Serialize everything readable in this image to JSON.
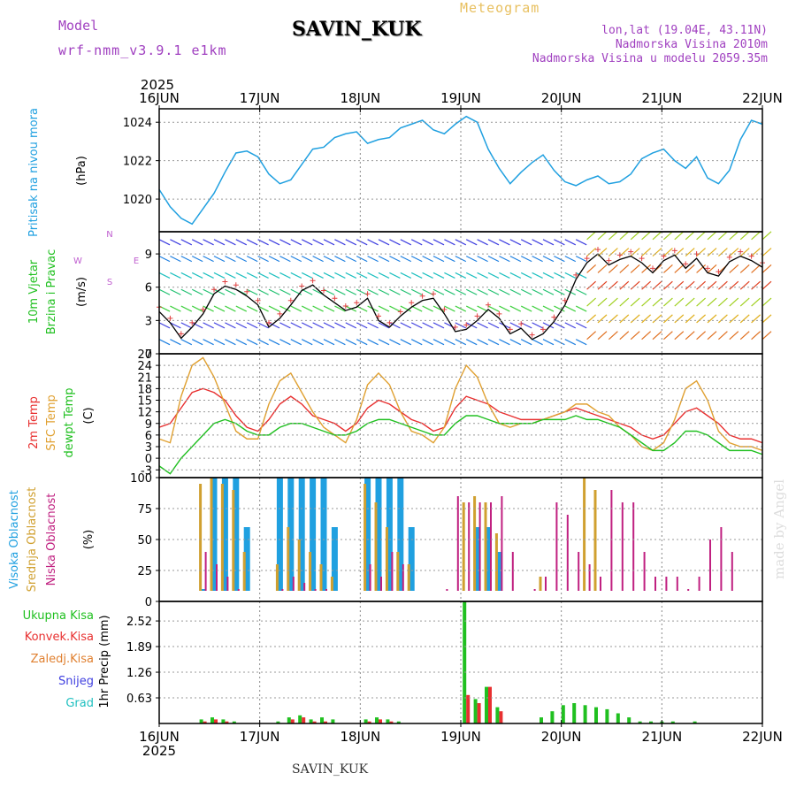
{
  "header": {
    "model_label": "Model",
    "model_name": "wrf-nmm_v3.9.1 e1km",
    "station": "SAVIN_KUK",
    "meteogram": "Meteogram",
    "coords": "lon,lat (19.04E, 43.11N)",
    "altitude": "Nadmorska Visina 2010m",
    "model_altitude": "Nadmorska Visina u modelu 2059.35m"
  },
  "footer": {
    "station": "SAVIN_KUK",
    "watermark": "made by Angel"
  },
  "colors": {
    "pressure": "#20a0e0",
    "wind": "#20c020",
    "t2m": "#e83030",
    "tsfc": "#e0a030",
    "dewpoint": "#20c020",
    "high_cloud": "#20a0e0",
    "mid_cloud": "#d0a030",
    "low_cloud": "#c02080",
    "total_precip": "#20c020",
    "conv_precip": "#e83030",
    "frozen_precip": "#e08030",
    "snow": "#4040e0",
    "hail": "#20c0c0"
  },
  "x_axis": {
    "year": "2025",
    "ticks": [
      "16JUN",
      "17JUN",
      "18JUN",
      "19JUN",
      "20JUN",
      "21JUN",
      "22JUN"
    ]
  },
  "chart_data": [
    {
      "type": "line",
      "ylabel": [
        "Pritisak na nivou mora",
        "(hPa)"
      ],
      "ylim": [
        1018.3,
        1024.7
      ],
      "yticks": [
        "1020",
        "1022",
        "1024"
      ],
      "x_hours_step": 3,
      "series": [
        {
          "values": [
            1020.5,
            1019.6,
            1019.0,
            1018.7,
            1019.5,
            1020.3,
            1021.4,
            1022.4,
            1022.5,
            1022.2,
            1021.3,
            1020.8,
            1021.0,
            1021.8,
            1022.6,
            1022.7,
            1023.2,
            1023.4,
            1023.5,
            1022.9,
            1023.1,
            1023.2,
            1023.7,
            1023.9,
            1024.1,
            1023.6,
            1023.4,
            1023.9,
            1024.3,
            1024.0,
            1022.6,
            1021.6,
            1020.8,
            1021.4,
            1021.9,
            1022.3,
            1021.5,
            1020.9,
            1020.7,
            1021.0,
            1021.2,
            1020.8,
            1020.9,
            1021.3,
            1022.1,
            1022.4,
            1022.6,
            1022.0,
            1021.6,
            1022.2,
            1021.1,
            1020.8,
            1021.5,
            1023.1,
            1024.1,
            1023.9
          ]
        }
      ]
    },
    {
      "type": "line",
      "ylabel": [
        "10m Vjetar",
        "Brzina i Pravac",
        "(m/s)"
      ],
      "ylim": [
        0,
        11
      ],
      "yticks": [
        "0",
        "3",
        "6",
        "9"
      ],
      "compass": [
        "N",
        "W",
        "E",
        "S"
      ],
      "series": [
        {
          "name": "speed",
          "values": [
            3.8,
            2.8,
            1.4,
            2.4,
            3.6,
            5.4,
            6.1,
            5.8,
            5.2,
            4.4,
            2.4,
            3.2,
            4.4,
            5.7,
            6.2,
            5.3,
            4.6,
            3.9,
            4.2,
            5.0,
            3.0,
            2.4,
            3.4,
            4.2,
            4.8,
            5.0,
            3.6,
            2.0,
            2.2,
            3.0,
            4.0,
            3.2,
            1.8,
            2.3,
            1.3,
            1.8,
            2.9,
            4.4,
            6.7,
            8.2,
            9.0,
            8.0,
            8.5,
            8.8,
            8.2,
            7.3,
            8.4,
            8.9,
            7.7,
            8.6,
            7.3,
            7.0,
            8.3,
            8.8,
            8.4,
            7.8
          ]
        }
      ]
    },
    {
      "type": "line",
      "ylabel": [
        "2m Temp",
        "SFC Temp",
        "dewpt Temp",
        "(C)"
      ],
      "ylim": [
        -5,
        27
      ],
      "yticks": [
        "-3",
        "0",
        "3",
        "6",
        "9",
        "12",
        "15",
        "18",
        "21",
        "24",
        "27"
      ],
      "series": [
        {
          "name": "2m Temp",
          "values": [
            8,
            9,
            13,
            17,
            18,
            17,
            15,
            11,
            8,
            7,
            10,
            14,
            16,
            14,
            11,
            10,
            9,
            7,
            9,
            13,
            15,
            14,
            12,
            10,
            9,
            7,
            8,
            13,
            16,
            15,
            14,
            12,
            11,
            10,
            10,
            10,
            11,
            12,
            13,
            12,
            11,
            10,
            9,
            8,
            6,
            5,
            6,
            9,
            12,
            13,
            11,
            9,
            6,
            5,
            5,
            4
          ]
        },
        {
          "name": "SFC Temp",
          "values": [
            5,
            4,
            16,
            24,
            26,
            21,
            14,
            7,
            5,
            5,
            14,
            20,
            22,
            17,
            12,
            8,
            6,
            4,
            10,
            19,
            22,
            19,
            12,
            7,
            6,
            4,
            8,
            18,
            24,
            21,
            14,
            9,
            8,
            9,
            9,
            10,
            11,
            12,
            14,
            14,
            12,
            11,
            8,
            6,
            3,
            2,
            4,
            10,
            18,
            20,
            15,
            7,
            4,
            3,
            3,
            2
          ]
        },
        {
          "name": "dewpt Temp",
          "values": [
            -2,
            -4,
            0,
            3,
            6,
            9,
            10,
            9,
            7,
            6,
            6,
            8,
            9,
            9,
            8,
            7,
            6,
            6,
            7,
            9,
            10,
            10,
            9,
            8,
            7,
            6,
            6,
            9,
            11,
            11,
            10,
            9,
            9,
            9,
            9,
            10,
            10,
            10,
            11,
            10,
            10,
            9,
            8,
            6,
            4,
            2,
            2,
            4,
            7,
            7,
            6,
            4,
            2,
            2,
            2,
            1
          ]
        }
      ]
    },
    {
      "type": "bar",
      "ylabel": [
        "Visoka Oblacnost",
        "Srednja Oblacnost",
        "Niska Oblacnost",
        "(%)"
      ],
      "ylim": [
        0,
        100
      ],
      "yticks": [
        "0",
        "25",
        "50",
        "75",
        "100"
      ],
      "series": [
        {
          "name": "Visoka Oblacnost",
          "values": [
            0,
            0,
            0,
            0,
            10,
            100,
            100,
            100,
            60,
            0,
            0,
            100,
            100,
            100,
            100,
            100,
            60,
            0,
            0,
            100,
            100,
            100,
            100,
            60,
            0,
            0,
            0,
            0,
            0,
            60,
            60,
            40,
            0,
            0,
            0,
            0,
            0,
            0,
            0,
            0,
            0,
            0,
            0,
            0,
            0,
            0,
            0,
            0,
            0,
            0,
            0,
            0,
            0,
            0,
            0,
            0
          ]
        },
        {
          "name": "Srednja Oblacnost",
          "values": [
            0,
            0,
            0,
            0,
            95,
            100,
            95,
            90,
            40,
            0,
            0,
            30,
            60,
            50,
            40,
            30,
            20,
            0,
            0,
            95,
            80,
            60,
            40,
            30,
            0,
            0,
            0,
            0,
            80,
            85,
            80,
            55,
            0,
            0,
            0,
            20,
            0,
            0,
            0,
            100,
            90,
            0,
            0,
            0,
            0,
            0,
            0,
            0,
            0,
            0,
            0,
            0,
            0,
            0,
            0,
            0
          ]
        },
        {
          "name": "Niska Oblacnost",
          "values": [
            0,
            0,
            0,
            0,
            40,
            30,
            20,
            10,
            0,
            0,
            0,
            10,
            20,
            15,
            10,
            10,
            0,
            0,
            0,
            30,
            20,
            40,
            30,
            0,
            0,
            0,
            10,
            85,
            80,
            80,
            80,
            85,
            40,
            0,
            10,
            20,
            80,
            70,
            40,
            30,
            20,
            90,
            80,
            80,
            40,
            20,
            20,
            20,
            10,
            20,
            50,
            60,
            40,
            0,
            0,
            0
          ]
        }
      ]
    },
    {
      "type": "bar",
      "ylabel": [
        "Ukupna Kisa",
        "Konvek.Kisa",
        "Zaledj.Kisa",
        "Snijeg",
        "Grad",
        "1hr Precip (mm)"
      ],
      "ylim": [
        0,
        3.0
      ],
      "yticks": [
        "0.63",
        "1.26",
        "1.89",
        "2.52"
      ],
      "series": [
        {
          "name": "Ukupna Kisa",
          "values": [
            0,
            0,
            0,
            0,
            0.1,
            0.15,
            0.1,
            0.05,
            0,
            0,
            0,
            0.05,
            0.15,
            0.2,
            0.1,
            0.15,
            0.1,
            0,
            0,
            0.1,
            0.15,
            0.1,
            0.05,
            0,
            0,
            0,
            0,
            0,
            3.0,
            0.6,
            0.9,
            0.4,
            0,
            0,
            0,
            0.15,
            0.3,
            0.45,
            0.5,
            0.45,
            0.4,
            0.35,
            0.25,
            0.15,
            0.05,
            0.05,
            0.05,
            0.05,
            0,
            0.05,
            0,
            0,
            0,
            0,
            0,
            0
          ]
        },
        {
          "name": "Konvek.Kisa",
          "values": [
            0,
            0,
            0,
            0,
            0.05,
            0.1,
            0.05,
            0,
            0,
            0,
            0,
            0,
            0.1,
            0.15,
            0.05,
            0.05,
            0,
            0,
            0,
            0.05,
            0.1,
            0.05,
            0,
            0,
            0,
            0,
            0,
            0,
            0.7,
            0.5,
            0.9,
            0.3,
            0,
            0,
            0,
            0,
            0,
            0,
            0,
            0,
            0,
            0,
            0,
            0,
            0,
            0,
            0,
            0,
            0,
            0,
            0,
            0,
            0,
            0,
            0,
            0
          ]
        }
      ]
    }
  ]
}
